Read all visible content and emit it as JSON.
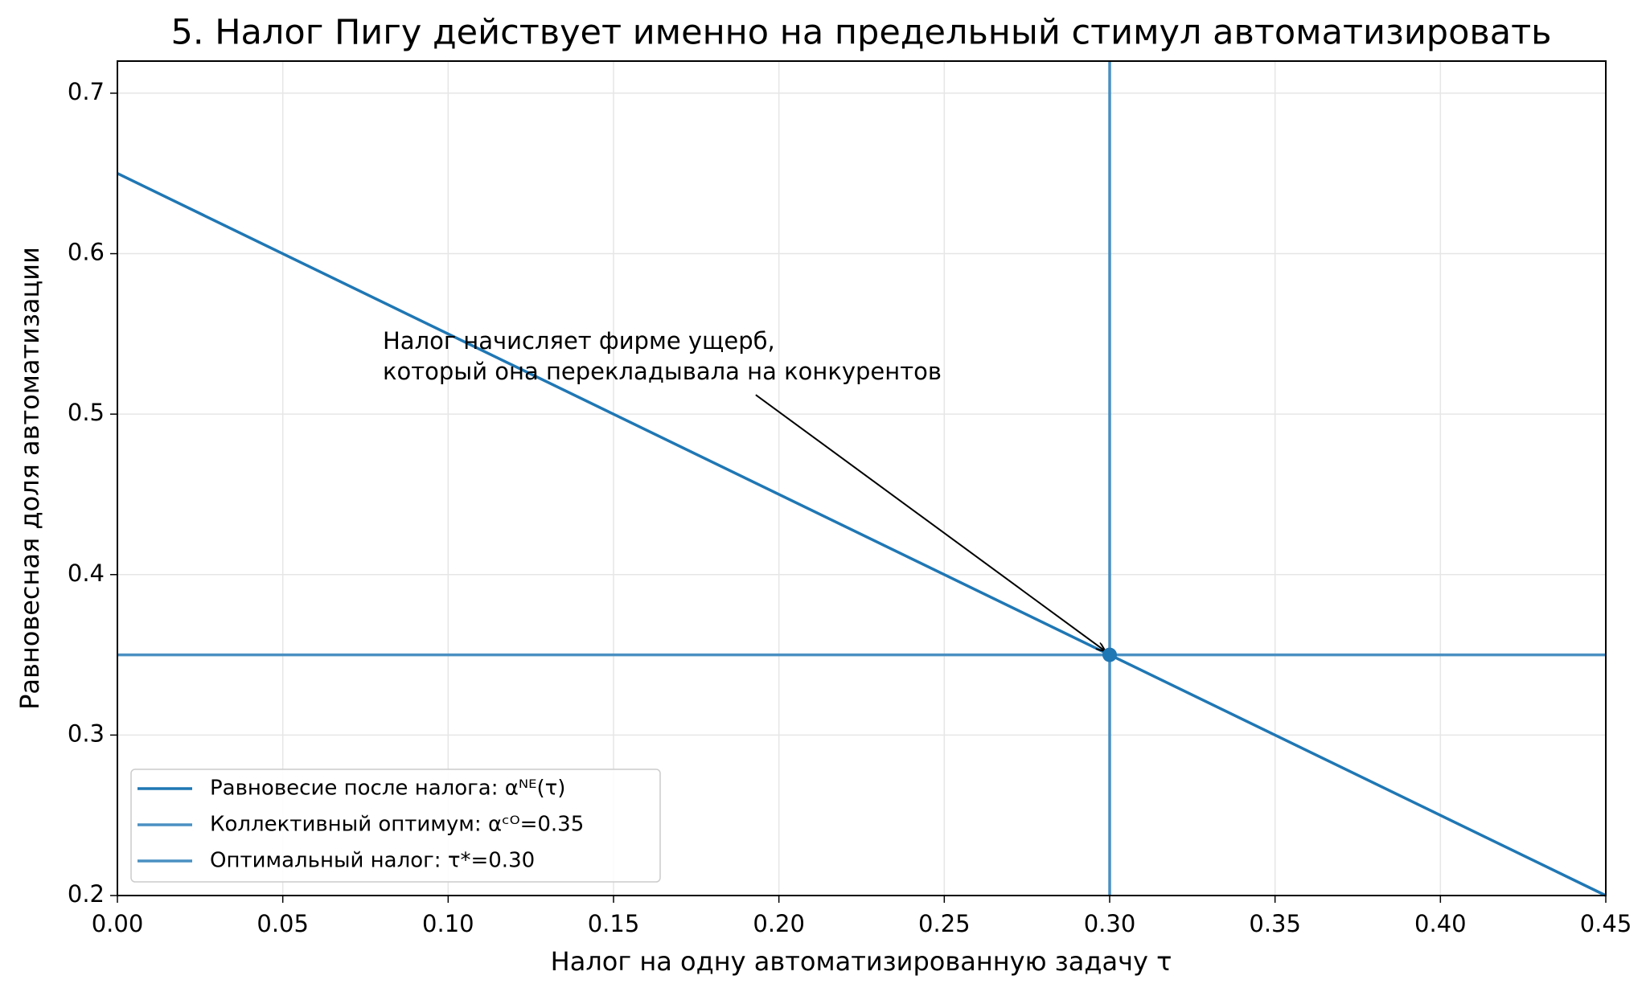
{
  "chart_data": {
    "type": "line",
    "title": "5. Налог Пигу действует именно на предельный стимул автоматизировать",
    "xlabel": "Налог на одну автоматизированную задачу τ",
    "ylabel": "Равновесная доля автоматизации",
    "xlim": [
      0,
      0.45
    ],
    "ylim": [
      0.2,
      0.72
    ],
    "xticks": [
      {
        "value": 0,
        "label": "0.00"
      },
      0.05,
      {
        "value": 0.1,
        "label": "0.10"
      },
      0.15,
      {
        "value": 0.2,
        "label": "0.20"
      },
      0.25,
      {
        "value": 0.3,
        "label": "0.30"
      },
      0.35,
      {
        "value": 0.4,
        "label": "0.40"
      },
      0.45
    ],
    "yticks": [
      0.2,
      0.3,
      0.4,
      0.5,
      0.6,
      0.7
    ],
    "grid": true,
    "legend": "lower left",
    "series": [
      {
        "name": "Равновесие после налога: αᴺᴱ(τ)",
        "color": "#1f77b4",
        "x": [
          0,
          0.45
        ],
        "values": [
          0.65,
          0.2
        ]
      },
      {
        "name": "Коллективный оптимум: αᶜᴼ=0.35",
        "color": "#4a90c2",
        "kind": "hline",
        "values": [
          0.35
        ]
      },
      {
        "name": "Оптимальный налог: τ*=0.30",
        "color": "#4a90c2",
        "kind": "vline",
        "values": [
          0.3
        ]
      }
    ],
    "annotation": {
      "text": [
        "Налог начисляет фирме ущерб,",
        "который она перекладывала на конкурентов"
      ],
      "xy": [
        0.3,
        0.35
      ],
      "xytext": [
        0.193,
        0.512
      ]
    }
  }
}
